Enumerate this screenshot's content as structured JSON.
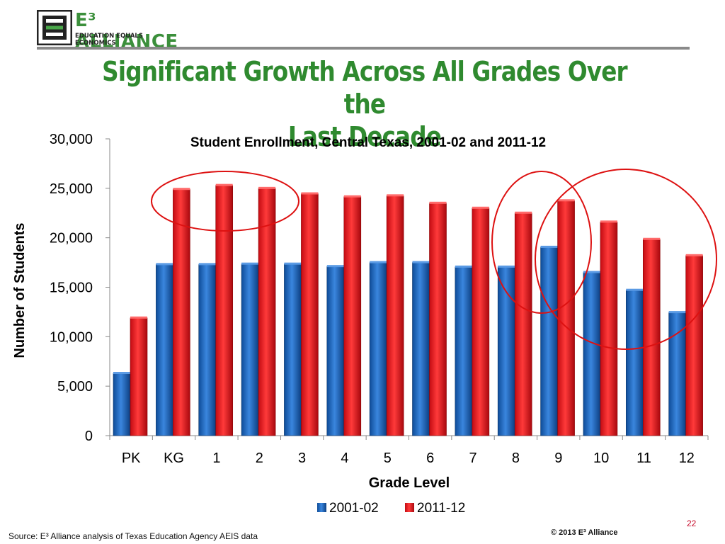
{
  "logo": {
    "text": "E³ ALLIANCE",
    "tagline": "EDUCATION EQUALS ECONOMICS"
  },
  "slide_title_line1": "Significant Growth Across All Grades Over the",
  "slide_title_line2": "Last Decade",
  "chart_data": {
    "type": "bar",
    "title": "Student Enrollment, Central Texas, 2001-02 and 2011-12",
    "xlabel": "Grade Level",
    "ylabel": "Number of Students",
    "categories": [
      "PK",
      "KG",
      "1",
      "2",
      "3",
      "4",
      "5",
      "6",
      "7",
      "8",
      "9",
      "10",
      "11",
      "12"
    ],
    "series": [
      {
        "name": "2001-02",
        "color": "#1f64b4",
        "values": [
          6300,
          17300,
          17300,
          17350,
          17350,
          17100,
          17500,
          17500,
          17050,
          17050,
          19050,
          16500,
          14700,
          12450
        ]
      },
      {
        "name": "2011-12",
        "color": "#e8141c",
        "values": [
          11900,
          24900,
          25300,
          25000,
          24450,
          24150,
          24250,
          23500,
          23000,
          22500,
          23750,
          21600,
          19850,
          18200
        ]
      }
    ],
    "ylim": [
      0,
      30000
    ],
    "yticks": [
      "0",
      "5,000",
      "10,000",
      "15,000",
      "20,000",
      "25,000",
      "30,000"
    ],
    "legend_position": "bottom",
    "grid": false,
    "annotation_circle_color": "#dd1111"
  },
  "footer": {
    "source": "Source: E³ Alliance analysis of Texas Education Agency AEIS data",
    "copyright": "© 2013 E³ Alliance",
    "page_number": "22"
  }
}
